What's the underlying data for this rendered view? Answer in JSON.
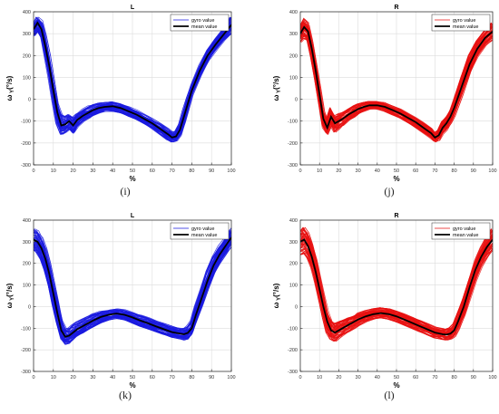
{
  "chart_data": [
    {
      "id": "i",
      "type": "line",
      "title": "L",
      "caption": "(i)",
      "xlabel": "%",
      "ylabel": "ω_Y(°/s)",
      "ylabel_main": "ω",
      "ylabel_sub": "Y",
      "ylabel_unit": "(°/s)",
      "xlim": [
        0,
        100
      ],
      "ylim": [
        -300,
        400
      ],
      "xticks": [
        0,
        10,
        20,
        30,
        40,
        50,
        60,
        70,
        80,
        90,
        100
      ],
      "yticks": [
        -300,
        -200,
        -100,
        0,
        100,
        200,
        300,
        400
      ],
      "grid": true,
      "legend_position": "top-right",
      "legend": [
        "gyro value",
        "mean value"
      ],
      "trace_color": "#1a1adf",
      "mean_color": "#000000",
      "series": [
        {
          "name": "mean value",
          "x": [
            0,
            2,
            4,
            6,
            8,
            10,
            12,
            14,
            16,
            18,
            20,
            22,
            25,
            28,
            30,
            33,
            36,
            40,
            44,
            48,
            52,
            56,
            60,
            64,
            68,
            70,
            72,
            74,
            76,
            78,
            80,
            84,
            88,
            92,
            96,
            100
          ],
          "values": [
            320,
            350,
            320,
            240,
            150,
            40,
            -60,
            -120,
            -115,
            -100,
            -120,
            -95,
            -75,
            -60,
            -50,
            -40,
            -35,
            -32,
            -40,
            -55,
            -70,
            -90,
            -110,
            -135,
            -160,
            -175,
            -170,
            -140,
            -80,
            -20,
            40,
            130,
            200,
            250,
            295,
            340
          ]
        }
      ],
      "band": {
        "x": [
          0,
          2,
          4,
          6,
          8,
          10,
          12,
          14,
          16,
          18,
          20,
          22,
          25,
          28,
          30,
          33,
          36,
          40,
          44,
          48,
          52,
          56,
          60,
          64,
          68,
          70,
          72,
          74,
          76,
          78,
          80,
          84,
          88,
          92,
          96,
          100
        ],
        "low": [
          290,
          310,
          280,
          190,
          100,
          -10,
          -110,
          -160,
          -150,
          -135,
          -155,
          -125,
          -100,
          -85,
          -75,
          -62,
          -55,
          -55,
          -62,
          -78,
          -92,
          -112,
          -132,
          -158,
          -185,
          -195,
          -190,
          -165,
          -110,
          -45,
          20,
          105,
          175,
          225,
          270,
          300
        ],
        "high": [
          350,
          375,
          360,
          290,
          200,
          90,
          -20,
          -70,
          -80,
          -70,
          -85,
          -65,
          -45,
          -30,
          -25,
          -18,
          -15,
          -12,
          -20,
          -35,
          -50,
          -70,
          -90,
          -112,
          -135,
          -150,
          -148,
          -115,
          -50,
          10,
          65,
          155,
          225,
          275,
          320,
          375
        ]
      }
    },
    {
      "id": "j",
      "type": "line",
      "title": "R",
      "caption": "(j)",
      "xlabel": "%",
      "ylabel": "ω_Y(°/s)",
      "ylabel_main": "ω",
      "ylabel_sub": "Y",
      "ylabel_unit": "(°/s)",
      "xlim": [
        0,
        100
      ],
      "ylim": [
        -300,
        400
      ],
      "xticks": [
        0,
        10,
        20,
        30,
        40,
        50,
        60,
        70,
        80,
        90,
        100
      ],
      "yticks": [
        -300,
        -200,
        -100,
        0,
        100,
        200,
        300,
        400
      ],
      "grid": true,
      "legend_position": "top-right",
      "legend": [
        "gyro value",
        "mean value"
      ],
      "trace_color": "#e81010",
      "mean_color": "#000000",
      "series": [
        {
          "name": "mean value",
          "x": [
            0,
            2,
            4,
            6,
            8,
            10,
            12,
            14,
            16,
            18,
            20,
            22,
            25,
            28,
            30,
            33,
            36,
            40,
            44,
            48,
            52,
            56,
            60,
            64,
            68,
            70,
            72,
            74,
            76,
            78,
            80,
            84,
            88,
            92,
            96,
            100
          ],
          "values": [
            300,
            330,
            310,
            230,
            130,
            20,
            -90,
            -130,
            -80,
            -110,
            -100,
            -90,
            -70,
            -55,
            -45,
            -35,
            -28,
            -28,
            -35,
            -50,
            -65,
            -85,
            -105,
            -130,
            -155,
            -175,
            -165,
            -130,
            -110,
            -80,
            -40,
            60,
            160,
            230,
            280,
            310
          ]
        }
      ],
      "band": {
        "x": [
          0,
          2,
          4,
          6,
          8,
          10,
          12,
          14,
          16,
          18,
          20,
          22,
          25,
          28,
          30,
          33,
          36,
          40,
          44,
          48,
          52,
          56,
          60,
          64,
          68,
          70,
          72,
          74,
          76,
          78,
          80,
          84,
          88,
          92,
          96,
          100
        ],
        "low": [
          260,
          280,
          270,
          190,
          90,
          -20,
          -130,
          -160,
          -120,
          -150,
          -135,
          -120,
          -95,
          -80,
          -68,
          -55,
          -45,
          -45,
          -55,
          -70,
          -85,
          -105,
          -128,
          -152,
          -178,
          -195,
          -188,
          -158,
          -140,
          -110,
          -75,
          20,
          120,
          195,
          245,
          270
        ],
        "high": [
          340,
          370,
          350,
          270,
          170,
          60,
          -50,
          -95,
          -40,
          -75,
          -65,
          -60,
          -45,
          -30,
          -22,
          -15,
          -10,
          -10,
          -15,
          -30,
          -45,
          -65,
          -85,
          -108,
          -132,
          -155,
          -142,
          -100,
          -80,
          -50,
          -5,
          100,
          200,
          265,
          310,
          350
        ]
      }
    },
    {
      "id": "k",
      "type": "line",
      "title": "L",
      "caption": "(k)",
      "xlabel": "%",
      "ylabel": "ω_Y(°/s)",
      "ylabel_main": "ω",
      "ylabel_sub": "Y",
      "ylabel_unit": "(°/s)",
      "xlim": [
        0,
        100
      ],
      "ylim": [
        -300,
        400
      ],
      "xticks": [
        0,
        10,
        20,
        30,
        40,
        50,
        60,
        70,
        80,
        90,
        100
      ],
      "yticks": [
        -300,
        -200,
        -100,
        0,
        100,
        200,
        300,
        400
      ],
      "grid": true,
      "legend_position": "top-right",
      "legend": [
        "gyro value",
        "mean value"
      ],
      "trace_color": "#1a1adf",
      "mean_color": "#000000",
      "series": [
        {
          "name": "mean value",
          "x": [
            0,
            2,
            4,
            6,
            8,
            10,
            12,
            14,
            16,
            18,
            20,
            22,
            25,
            28,
            30,
            34,
            38,
            42,
            46,
            50,
            54,
            58,
            62,
            66,
            70,
            74,
            76,
            78,
            80,
            82,
            85,
            88,
            91,
            94,
            97,
            100
          ],
          "values": [
            310,
            300,
            270,
            220,
            150,
            60,
            -30,
            -110,
            -140,
            -135,
            -120,
            -105,
            -90,
            -75,
            -65,
            -48,
            -38,
            -32,
            -38,
            -50,
            -65,
            -78,
            -92,
            -105,
            -118,
            -125,
            -128,
            -122,
            -100,
            -40,
            40,
            120,
            190,
            240,
            280,
            320
          ]
        }
      ],
      "band": {
        "x": [
          0,
          2,
          4,
          6,
          8,
          10,
          12,
          14,
          16,
          18,
          20,
          22,
          25,
          28,
          30,
          34,
          38,
          42,
          46,
          50,
          54,
          58,
          62,
          66,
          70,
          74,
          76,
          78,
          80,
          82,
          85,
          88,
          91,
          94,
          97,
          100
        ],
        "low": [
          260,
          250,
          220,
          170,
          100,
          10,
          -80,
          -150,
          -175,
          -170,
          -155,
          -138,
          -122,
          -105,
          -95,
          -75,
          -62,
          -55,
          -62,
          -75,
          -90,
          -102,
          -115,
          -128,
          -142,
          -150,
          -155,
          -150,
          -130,
          -80,
          0,
          80,
          150,
          200,
          240,
          275
        ],
        "high": [
          360,
          350,
          320,
          270,
          200,
          110,
          20,
          -65,
          -100,
          -100,
          -85,
          -72,
          -58,
          -45,
          -35,
          -22,
          -15,
          -10,
          -15,
          -28,
          -40,
          -52,
          -68,
          -80,
          -92,
          -100,
          -100,
          -90,
          -65,
          0,
          80,
          165,
          230,
          280,
          320,
          365
        ]
      }
    },
    {
      "id": "l",
      "type": "line",
      "title": "R",
      "caption": "(l)",
      "xlabel": "%",
      "ylabel": "ω_Y(°/s)",
      "ylabel_main": "ω",
      "ylabel_sub": "Y",
      "ylabel_unit": "(°/s)",
      "xlim": [
        0,
        100
      ],
      "ylim": [
        -300,
        400
      ],
      "xticks": [
        0,
        10,
        20,
        30,
        40,
        50,
        60,
        70,
        80,
        90,
        100
      ],
      "yticks": [
        -300,
        -200,
        -100,
        0,
        100,
        200,
        300,
        400
      ],
      "grid": true,
      "legend_position": "top-right",
      "legend": [
        "gyro value",
        "mean value"
      ],
      "trace_color": "#e81010",
      "mean_color": "#000000",
      "series": [
        {
          "name": "mean value",
          "x": [
            0,
            2,
            4,
            6,
            8,
            10,
            12,
            14,
            16,
            18,
            20,
            22,
            25,
            28,
            30,
            34,
            38,
            42,
            46,
            50,
            54,
            58,
            62,
            66,
            70,
            74,
            76,
            78,
            80,
            82,
            85,
            88,
            91,
            94,
            97,
            100
          ],
          "values": [
            300,
            310,
            280,
            230,
            160,
            80,
            0,
            -70,
            -110,
            -120,
            -110,
            -100,
            -85,
            -70,
            -60,
            -45,
            -35,
            -30,
            -35,
            -45,
            -60,
            -75,
            -90,
            -105,
            -120,
            -128,
            -130,
            -125,
            -110,
            -70,
            0,
            90,
            170,
            230,
            275,
            310
          ]
        }
      ],
      "band": {
        "x": [
          0,
          2,
          4,
          6,
          8,
          10,
          12,
          14,
          16,
          18,
          20,
          22,
          25,
          28,
          30,
          34,
          38,
          42,
          46,
          50,
          54,
          58,
          62,
          66,
          70,
          74,
          76,
          78,
          80,
          82,
          85,
          88,
          91,
          94,
          97,
          100
        ],
        "low": [
          240,
          250,
          225,
          180,
          110,
          30,
          -50,
          -120,
          -150,
          -160,
          -145,
          -132,
          -115,
          -100,
          -88,
          -70,
          -58,
          -52,
          -58,
          -70,
          -85,
          -100,
          -115,
          -130,
          -145,
          -152,
          -155,
          -150,
          -138,
          -105,
          -40,
          40,
          120,
          185,
          230,
          260
        ],
        "high": [
          350,
          365,
          340,
          285,
          215,
          130,
          50,
          -25,
          -65,
          -80,
          -72,
          -65,
          -52,
          -40,
          -30,
          -18,
          -10,
          -5,
          -10,
          -22,
          -35,
          -50,
          -65,
          -80,
          -95,
          -102,
          -105,
          -98,
          -80,
          -35,
          40,
          135,
          215,
          275,
          320,
          360
        ]
      }
    }
  ]
}
